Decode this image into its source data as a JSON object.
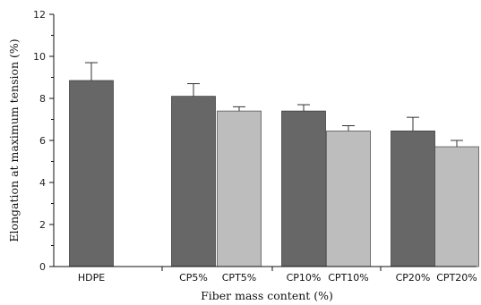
{
  "chart_data": {
    "type": "bar",
    "xlabel": "Fiber mass content (%)",
    "ylabel": "Elongation at maximum tension (%)",
    "ylim": [
      0,
      12
    ],
    "yticks": [
      0,
      2,
      4,
      6,
      8,
      10,
      12
    ],
    "grid": false,
    "colors": {
      "dark": "#676767",
      "light": "#bdbdbd"
    },
    "bars": [
      {
        "label": "HDPE",
        "value": 8.85,
        "error": 0.85,
        "shade": "dark"
      },
      {
        "label": "CP5%",
        "value": 8.1,
        "error": 0.6,
        "shade": "dark"
      },
      {
        "label": "CPT5%",
        "value": 7.4,
        "error": 0.2,
        "shade": "light"
      },
      {
        "label": "CP10%",
        "value": 7.4,
        "error": 0.3,
        "shade": "dark"
      },
      {
        "label": "CPT10%",
        "value": 6.45,
        "error": 0.25,
        "shade": "light"
      },
      {
        "label": "CP20%",
        "value": 6.45,
        "error": 0.65,
        "shade": "dark"
      },
      {
        "label": "CPT20%",
        "value": 5.7,
        "error": 0.3,
        "shade": "light"
      }
    ]
  }
}
